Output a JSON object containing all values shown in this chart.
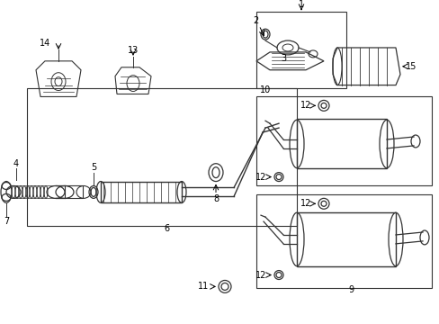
{
  "title": "",
  "bg_color": "#ffffff",
  "line_color": "#333333",
  "label_color": "#000000",
  "fig_width": 4.89,
  "fig_height": 3.6,
  "dpi": 100
}
